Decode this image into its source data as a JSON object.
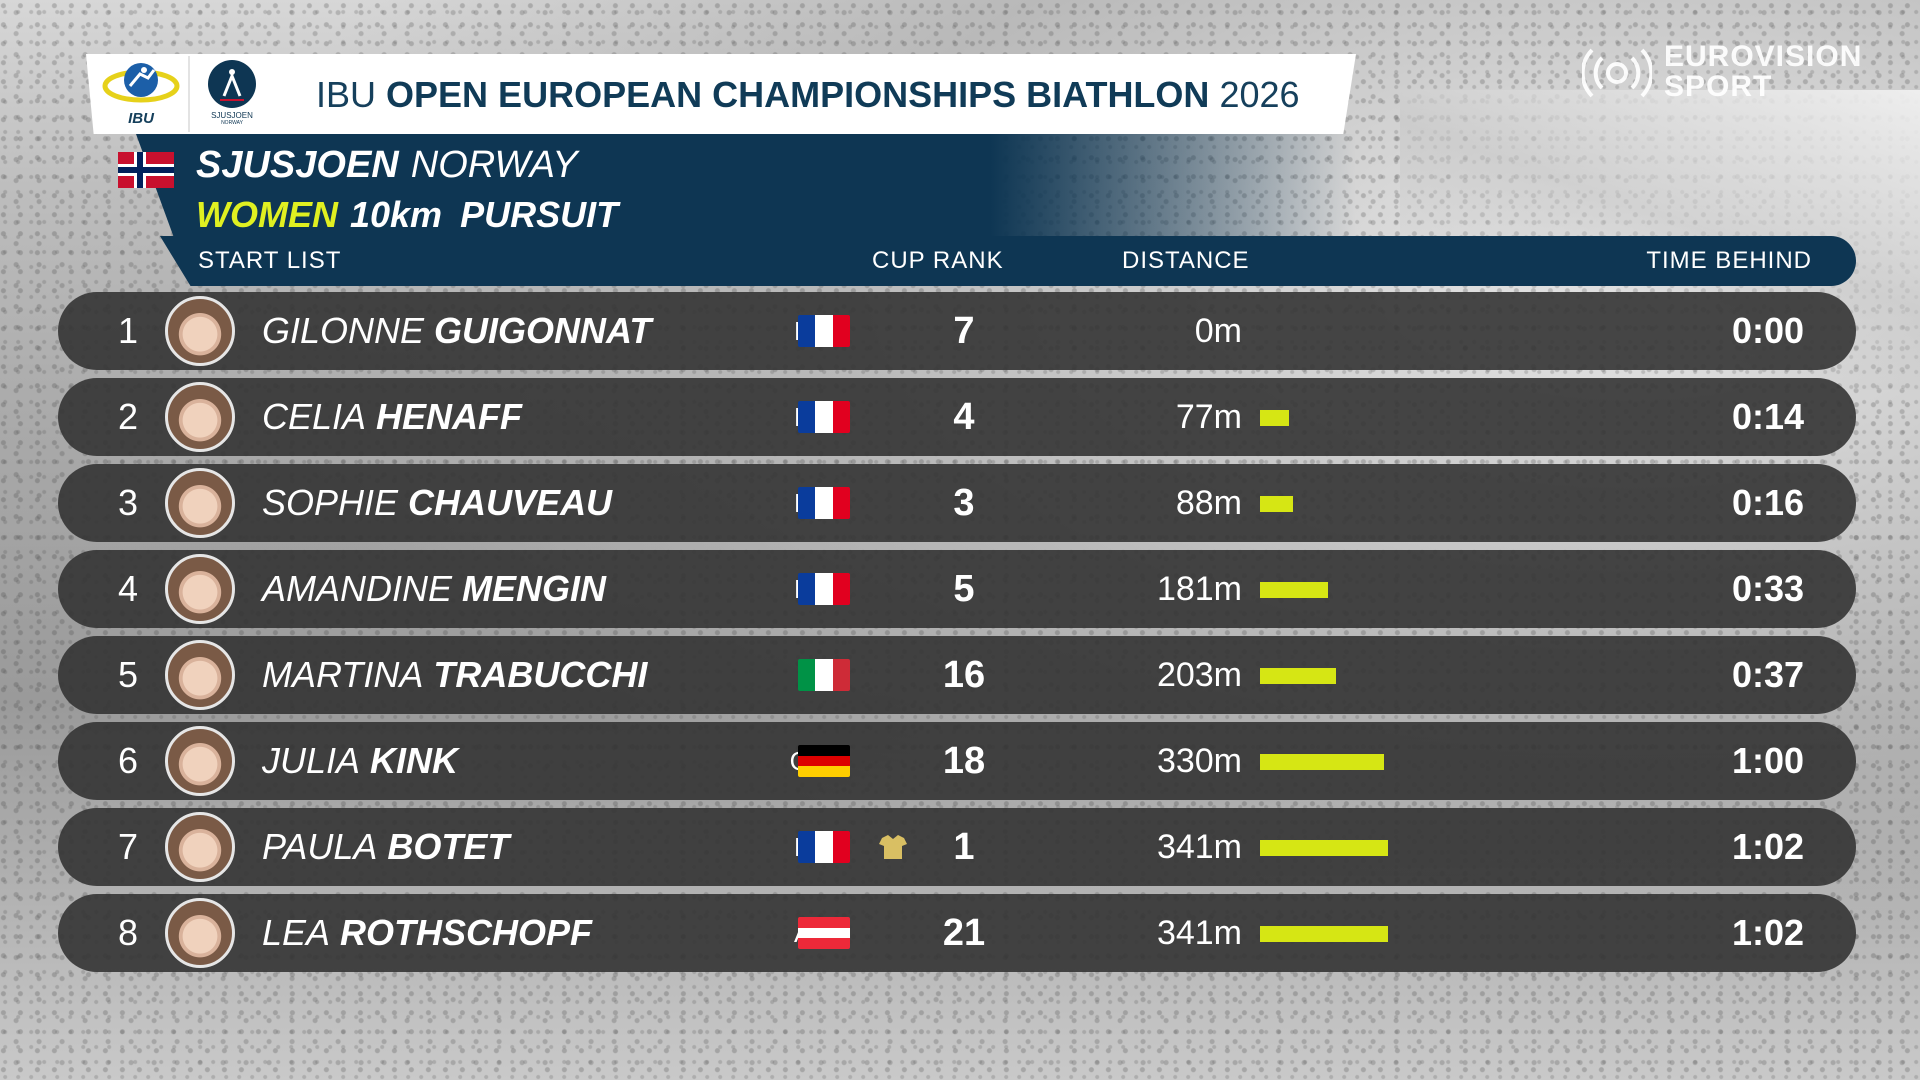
{
  "header": {
    "logo_ibu_text": "IBU",
    "logo_sjus_text": "SJUSJOEN",
    "logo_sjus_sub": "NORWAY",
    "title_prefix": "IBU",
    "title_main": "OPEN EUROPEAN CHAMPIONSHIPS BIATHLON",
    "title_year": "2026",
    "venue_city": "SJUSJOEN",
    "venue_country": "NORWAY",
    "event_gender": "WOMEN",
    "event_distance": "10km",
    "event_type": "PURSUIT",
    "broadcaster_line1": "EUROVISION",
    "broadcaster_line2": "SPORT"
  },
  "columns": {
    "start_list": "START  LIST",
    "cup_rank": "CUP  RANK",
    "distance": "DISTANCE",
    "time_behind": "TIME  BEHIND"
  },
  "colors": {
    "accent_yellow": "#e0f021",
    "bar_yellow": "#d6e614",
    "navy": "#0e3653",
    "row_bg": "#343434"
  },
  "rows": [
    {
      "rank": "1",
      "first": "GILONNE",
      "last": "GUIGONNAT",
      "nat": "FRA",
      "cup": "7",
      "distance": "0m",
      "distance_m": 0,
      "behind": "0:00",
      "yellow_jersey": false
    },
    {
      "rank": "2",
      "first": "CELIA",
      "last": "HENAFF",
      "nat": "FRA",
      "cup": "4",
      "distance": "77m",
      "distance_m": 77,
      "behind": "0:14",
      "yellow_jersey": false
    },
    {
      "rank": "3",
      "first": "SOPHIE",
      "last": "CHAUVEAU",
      "nat": "FRA",
      "cup": "3",
      "distance": "88m",
      "distance_m": 88,
      "behind": "0:16",
      "yellow_jersey": false
    },
    {
      "rank": "4",
      "first": "AMANDINE",
      "last": "MENGIN",
      "nat": "FRA",
      "cup": "5",
      "distance": "181m",
      "distance_m": 181,
      "behind": "0:33",
      "yellow_jersey": false
    },
    {
      "rank": "5",
      "first": "MARTINA",
      "last": "TRABUCCHI",
      "nat": "ITA",
      "cup": "16",
      "distance": "203m",
      "distance_m": 203,
      "behind": "0:37",
      "yellow_jersey": false
    },
    {
      "rank": "6",
      "first": "JULIA",
      "last": "KINK",
      "nat": "GER",
      "cup": "18",
      "distance": "330m",
      "distance_m": 330,
      "behind": "1:00",
      "yellow_jersey": false
    },
    {
      "rank": "7",
      "first": "PAULA",
      "last": "BOTET",
      "nat": "FRA",
      "cup": "1",
      "distance": "341m",
      "distance_m": 341,
      "behind": "1:02",
      "yellow_jersey": true
    },
    {
      "rank": "8",
      "first": "LEA",
      "last": "ROTHSCHOPF",
      "nat": "AUT",
      "cup": "21",
      "distance": "341m",
      "distance_m": 341,
      "behind": "1:02",
      "yellow_jersey": false
    }
  ]
}
